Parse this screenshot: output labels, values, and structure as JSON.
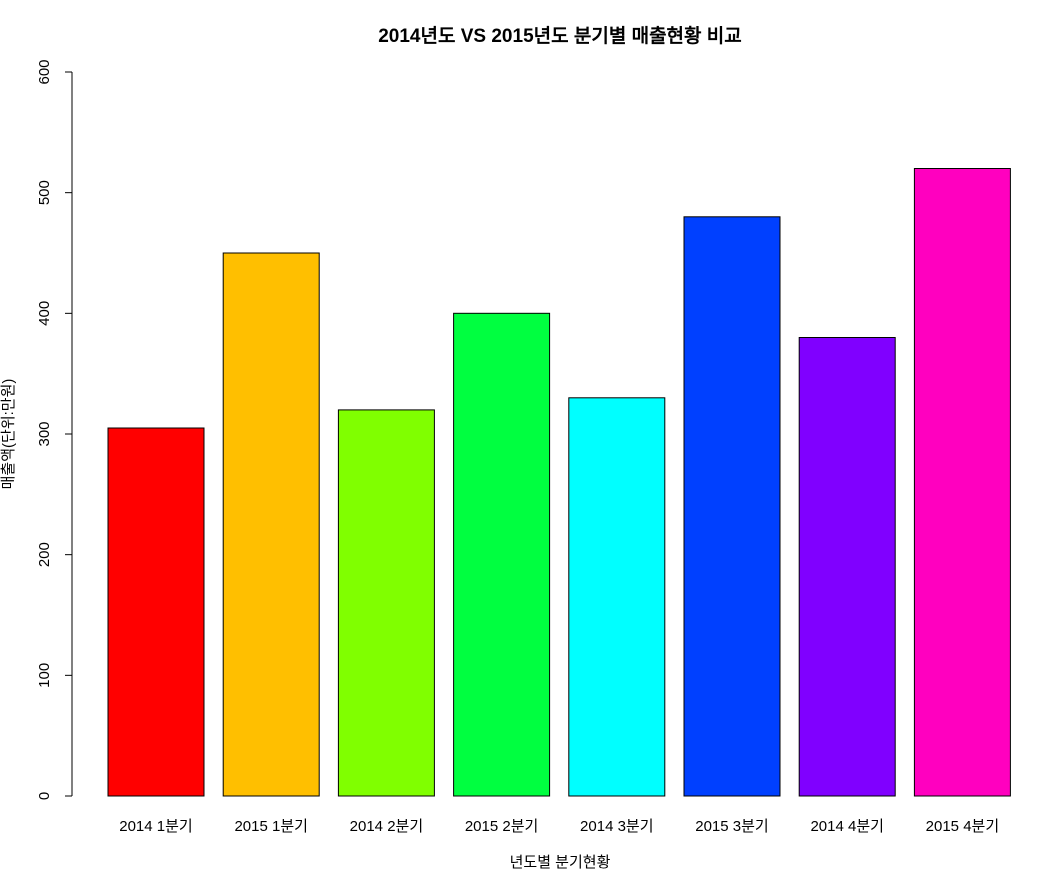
{
  "chart_data": {
    "type": "bar",
    "title": "2014년도 VS 2015년도 분기별 매출현황 비교",
    "xlabel": "년도별 분기현황",
    "ylabel": "매출액(단위:만원)",
    "categories": [
      "2014 1분기",
      "2015 1분기",
      "2014 2분기",
      "2015 2분기",
      "2014 3분기",
      "2015 3분기",
      "2014 4분기",
      "2015 4분기"
    ],
    "values": [
      305,
      450,
      320,
      400,
      330,
      480,
      380,
      520
    ],
    "colors": [
      "#FF0000",
      "#FFBF00",
      "#80FF00",
      "#00FF40",
      "#00FFFF",
      "#0040FF",
      "#8000FF",
      "#FF00BF"
    ],
    "ylim": [
      0,
      600
    ],
    "yticks": [
      0,
      100,
      200,
      300,
      400,
      500,
      600
    ],
    "grid": false,
    "legend": "none"
  }
}
